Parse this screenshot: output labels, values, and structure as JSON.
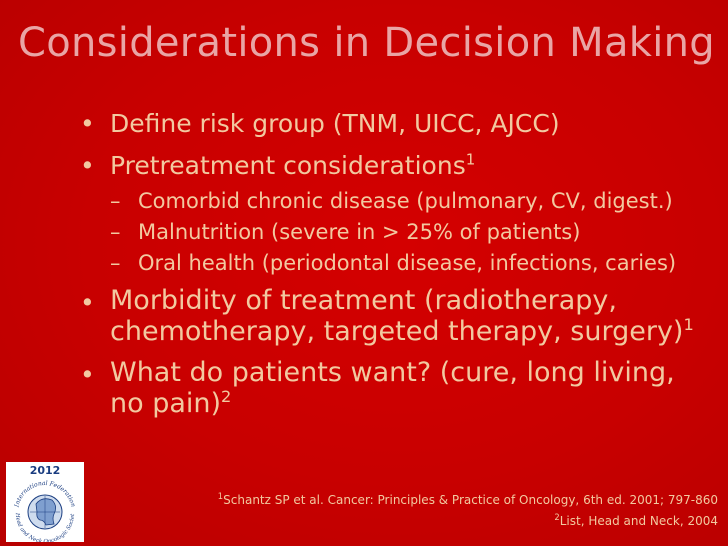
{
  "slide": {
    "title": "Considerations in Decision Making",
    "bullets": [
      {
        "text": "Define risk group (TNM, UICC, AJCC)"
      },
      {
        "text": "Pretreatment considerations",
        "sup": "1",
        "sub": [
          {
            "text": "Comorbid chronic disease (pulmonary, CV, digest.)"
          },
          {
            "text": "Malnutrition (severe in > 25% of patients)"
          },
          {
            "text": "Oral health (periodontal disease, infections, caries)"
          }
        ]
      },
      {
        "text": "Morbidity of treatment (radiotherapy, chemotherapy, targeted therapy, surgery)",
        "sup": "1"
      },
      {
        "text": "What do patients want? (cure, long living, no pain)",
        "sup": "2"
      }
    ],
    "references": [
      {
        "sup": "1",
        "text": "Schantz SP et al. Cancer: Principles & Practice of Oncology, 6th ed. 2001; 797-860"
      },
      {
        "sup": "2",
        "text": "List, Head and Neck, 2004"
      }
    ],
    "logo": {
      "year": "2012",
      "name": "International Federation of Head and Neck Oncologic Societies"
    }
  },
  "colors": {
    "background": "#cc0000",
    "title": "#e9a5a5",
    "text": "#f2c9a0",
    "logo_blue": "#1a3d80"
  }
}
